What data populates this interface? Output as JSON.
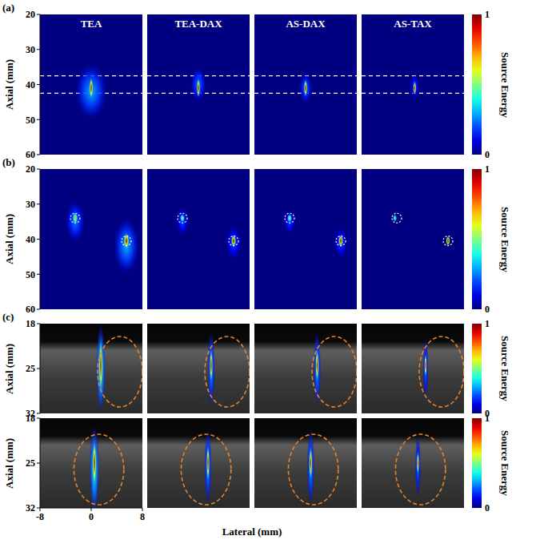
{
  "chart_data": [
    {
      "type": "heatmap",
      "label": "(a)",
      "y_label": "Axial (mm)",
      "xlim": [
        -8,
        8
      ],
      "ylim": [
        20,
        60
      ],
      "yticks": [
        20,
        30,
        40,
        50,
        60
      ],
      "tick_labels": "y",
      "guide_lines": [
        37.5,
        42.5
      ],
      "colorbar": {
        "label": "Source Energy",
        "range": [
          0,
          1
        ],
        "ticks": [
          0,
          1
        ]
      },
      "panels": [
        {
          "title": "TEA",
          "sources": [
            {
              "lateral": 0,
              "axial": 42,
              "length": 16,
              "width": 5,
              "energy": 0.3
            },
            {
              "lateral": 0,
              "axial": 41,
              "length": 6,
              "width": 0.6,
              "energy": 1
            }
          ]
        },
        {
          "title": "TEA-DAX",
          "sources": [
            {
              "lateral": 0,
              "axial": 40,
              "length": 10,
              "width": 2.5,
              "energy": 0.25
            },
            {
              "lateral": 0,
              "axial": 41,
              "length": 5.5,
              "width": 0.55,
              "energy": 1
            }
          ]
        },
        {
          "title": "AS-DAX",
          "sources": [
            {
              "lateral": 0,
              "axial": 41,
              "length": 9,
              "width": 2,
              "energy": 0.25
            },
            {
              "lateral": 0,
              "axial": 41,
              "length": 5,
              "width": 0.55,
              "energy": 1
            }
          ]
        },
        {
          "title": "AS-TAX",
          "sources": [
            {
              "lateral": 0.3,
              "axial": 40.5,
              "length": 7,
              "width": 1.5,
              "energy": 0.2
            },
            {
              "lateral": 0.3,
              "axial": 41,
              "length": 4,
              "width": 0.5,
              "energy": 1
            }
          ]
        }
      ]
    },
    {
      "type": "heatmap",
      "label": "(b)",
      "y_label": "Axial (mm)",
      "xlim": [
        -8,
        8
      ],
      "ylim": [
        20,
        60
      ],
      "yticks": [
        20,
        30,
        40,
        50,
        60
      ],
      "tick_labels": "y",
      "colorbar": {
        "label": "Source Energy",
        "range": [
          0,
          1
        ],
        "ticks": [
          0,
          1
        ]
      },
      "panels": [
        {
          "sources": [
            {
              "lateral": -2.5,
              "axial": 35,
              "length": 12,
              "width": 3,
              "energy": 0.25
            },
            {
              "lateral": 5.5,
              "axial": 42,
              "length": 16,
              "width": 4,
              "energy": 0.3
            },
            {
              "lateral": -2.5,
              "axial": 34,
              "length": 3.5,
              "width": 0.9,
              "energy": 0.7
            },
            {
              "lateral": 5.5,
              "axial": 40.5,
              "length": 4.5,
              "width": 0.9,
              "energy": 1
            }
          ],
          "targets": [
            {
              "lateral": -2.5,
              "axial": 34
            },
            {
              "lateral": 5.5,
              "axial": 40.5
            }
          ]
        },
        {
          "sources": [
            {
              "lateral": -2.5,
              "axial": 35,
              "length": 8,
              "width": 2,
              "energy": 0.2
            },
            {
              "lateral": 5.5,
              "axial": 41,
              "length": 10,
              "width": 2.5,
              "energy": 0.2
            },
            {
              "lateral": -2.5,
              "axial": 34,
              "length": 2.5,
              "width": 0.8,
              "energy": 0.6
            },
            {
              "lateral": 5.5,
              "axial": 40.5,
              "length": 3.5,
              "width": 0.8,
              "energy": 1
            }
          ],
          "targets": [
            {
              "lateral": -2.5,
              "axial": 34
            },
            {
              "lateral": 5.5,
              "axial": 40.5
            }
          ]
        },
        {
          "sources": [
            {
              "lateral": -2.5,
              "axial": 35,
              "length": 7,
              "width": 1.8,
              "energy": 0.2
            },
            {
              "lateral": 5.5,
              "axial": 41,
              "length": 9,
              "width": 2.2,
              "energy": 0.2
            },
            {
              "lateral": -2.5,
              "axial": 34,
              "length": 2.5,
              "width": 0.8,
              "energy": 0.6
            },
            {
              "lateral": 5.5,
              "axial": 40.5,
              "length": 3.5,
              "width": 0.8,
              "energy": 1
            }
          ],
          "targets": [
            {
              "lateral": -2.5,
              "axial": 34
            },
            {
              "lateral": 5.5,
              "axial": 40.5
            }
          ]
        },
        {
          "sources": [
            {
              "lateral": -2.8,
              "axial": 34,
              "length": 2.2,
              "width": 0.7,
              "energy": 0.55
            },
            {
              "lateral": 5.5,
              "axial": 40.5,
              "length": 3,
              "width": 0.7,
              "energy": 0.95
            }
          ],
          "targets": [
            {
              "lateral": -2.5,
              "axial": 34
            },
            {
              "lateral": 5.5,
              "axial": 40.5
            }
          ]
        }
      ]
    },
    {
      "type": "heatmap",
      "label": "(c)",
      "y_label": "Axial (mm)",
      "xlim": [
        -8,
        8
      ],
      "ylim": [
        18,
        32
      ],
      "yticks": [
        18,
        25,
        32
      ],
      "tick_labels": "y",
      "colorbar": {
        "label": "Source Energy",
        "range": [
          0,
          1
        ],
        "ticks": [
          0,
          1
        ]
      },
      "panels": [
        {
          "sources": [
            {
              "lateral": 1.5,
              "axial": 25,
              "length": 14,
              "width": 1.5,
              "energy": 0.4
            },
            {
              "lateral": 1.5,
              "axial": 24.5,
              "length": 8,
              "width": 0.6,
              "energy": 1
            }
          ],
          "outline": {
            "lateral": 4.5,
            "axial": 25.5,
            "radius_lateral": 3.5,
            "radius_axial": 5.5
          }
        },
        {
          "sources": [
            {
              "lateral": 2,
              "axial": 25,
              "length": 12,
              "width": 1.2,
              "energy": 0.3
            },
            {
              "lateral": 2,
              "axial": 24.5,
              "length": 5,
              "width": 0.5,
              "energy": 1
            }
          ],
          "outline": {
            "lateral": 4.5,
            "axial": 25.5,
            "radius_lateral": 3.5,
            "radius_axial": 5.5
          }
        },
        {
          "sources": [
            {
              "lateral": 1.8,
              "axial": 25,
              "length": 12,
              "width": 1.2,
              "energy": 0.3
            },
            {
              "lateral": 1.8,
              "axial": 24.5,
              "length": 5,
              "width": 0.5,
              "energy": 1
            }
          ],
          "outline": {
            "lateral": 4.5,
            "axial": 25.5,
            "radius_lateral": 3.5,
            "radius_axial": 5.5
          }
        },
        {
          "sources": [
            {
              "lateral": 2,
              "axial": 25,
              "length": 10,
              "width": 0.9,
              "energy": 0.25
            },
            {
              "lateral": 2,
              "axial": 24.5,
              "length": 3.5,
              "width": 0.45,
              "energy": 0.95
            }
          ],
          "outline": {
            "lateral": 4.5,
            "axial": 25.5,
            "radius_lateral": 3.5,
            "radius_axial": 5.5
          }
        }
      ]
    },
    {
      "type": "heatmap",
      "y_label": "Axial (mm)",
      "x_label": "Lateral (mm)",
      "xlim": [
        -8,
        8
      ],
      "ylim": [
        18,
        32
      ],
      "xticks": [
        -8,
        0,
        8
      ],
      "yticks": [
        18,
        25,
        32
      ],
      "tick_labels": true,
      "colorbar": {
        "label": "Source Energy",
        "range": [
          0,
          1
        ],
        "ticks": [
          0,
          1
        ]
      },
      "panels": [
        {
          "sources": [
            {
              "lateral": 0.5,
              "axial": 26,
              "length": 14,
              "width": 1.6,
              "energy": 0.4
            },
            {
              "lateral": 0.5,
              "axial": 25,
              "length": 7,
              "width": 0.6,
              "energy": 1
            }
          ],
          "outline": {
            "lateral": 1.2,
            "axial": 26,
            "radius_lateral": 3.9,
            "radius_axial": 5.5
          }
        },
        {
          "sources": [
            {
              "lateral": 1.5,
              "axial": 25.5,
              "length": 12,
              "width": 1.2,
              "energy": 0.3
            },
            {
              "lateral": 1.5,
              "axial": 25,
              "length": 5.5,
              "width": 0.5,
              "energy": 1
            }
          ],
          "outline": {
            "lateral": 1.2,
            "axial": 26,
            "radius_lateral": 3.9,
            "radius_axial": 5.5
          }
        },
        {
          "sources": [
            {
              "lateral": 0.8,
              "axial": 25.5,
              "length": 12,
              "width": 1.2,
              "energy": 0.3
            },
            {
              "lateral": 0.8,
              "axial": 25,
              "length": 5,
              "width": 0.5,
              "energy": 1
            }
          ],
          "outline": {
            "lateral": 1.2,
            "axial": 26,
            "radius_lateral": 3.9,
            "radius_axial": 5.5
          }
        },
        {
          "sources": [
            {
              "lateral": 0.8,
              "axial": 25.5,
              "length": 10,
              "width": 0.9,
              "energy": 0.25
            },
            {
              "lateral": 0.8,
              "axial": 25,
              "length": 3.5,
              "width": 0.45,
              "energy": 0.9
            }
          ],
          "outline": {
            "lateral": 1.2,
            "axial": 26,
            "radius_lateral": 3.9,
            "radius_axial": 5.5
          }
        }
      ]
    }
  ]
}
